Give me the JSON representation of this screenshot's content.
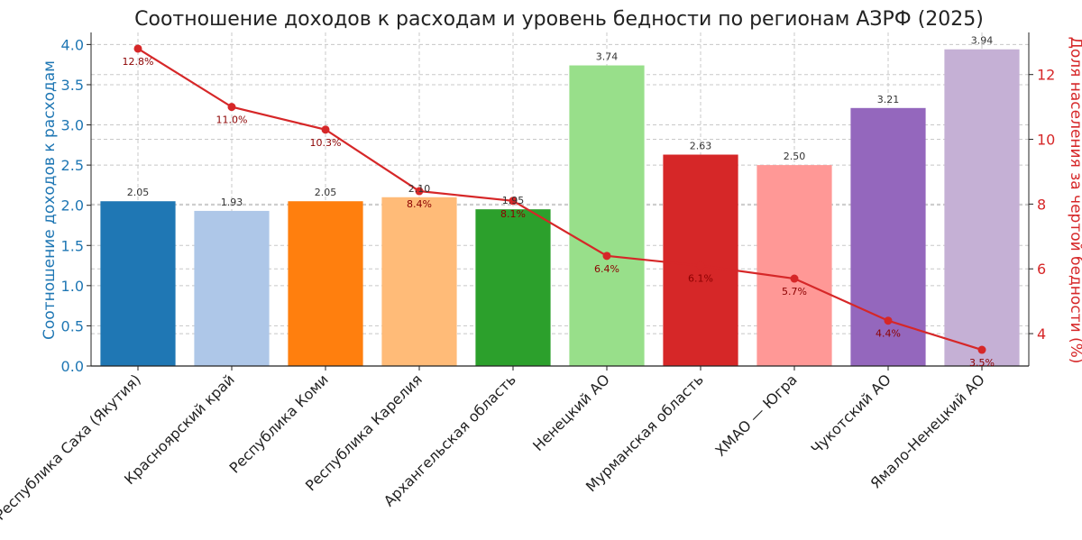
{
  "chart_data": {
    "type": "bar",
    "title": "Соотношение доходов к расходам и уровень бедности по регионам АЗРФ (2025)",
    "categories": [
      "Республика Саха (Якутия)",
      "Красноярский край",
      "Республика Коми",
      "Республика Карелия",
      "Архангельская область",
      "Ненецкий АО",
      "Мурманская область",
      "ХМАО — Югра",
      "Чукотский АО",
      "Ямало-Ненецкий АО"
    ],
    "ylabel": "Соотношение доходов к расходам",
    "y2label": "Доля населения за чертой бедности (%)",
    "ylim": [
      0,
      4.15
    ],
    "y2lim": [
      3.0,
      13.3
    ],
    "yticks": [
      "0.0",
      "0.5",
      "1.0",
      "1.5",
      "2.0",
      "2.5",
      "3.0",
      "3.5",
      "4.0"
    ],
    "y2ticks": [
      "4",
      "6",
      "8",
      "10",
      "12"
    ],
    "grid": true,
    "series": [
      {
        "type": "bar",
        "axis": "left",
        "values": [
          2.05,
          1.93,
          2.05,
          2.1,
          1.95,
          3.74,
          2.63,
          2.5,
          3.21,
          3.94
        ],
        "labels": [
          "2.05",
          "1.93",
          "2.05",
          "2.10",
          "1.95",
          "3.74",
          "2.63",
          "2.50",
          "3.21",
          "3.94"
        ],
        "colors": [
          "#1f77b4",
          "#aec7e8",
          "#ff7f0e",
          "#ffbb78",
          "#2ca02c",
          "#98df8a",
          "#d62728",
          "#ff9896",
          "#9467bd",
          "#c5b0d5"
        ]
      },
      {
        "type": "line",
        "axis": "right",
        "values": [
          12.8,
          11.0,
          10.3,
          8.4,
          8.1,
          6.4,
          6.1,
          5.7,
          4.4,
          3.5
        ],
        "labels": [
          "12.8%",
          "11.0%",
          "10.3%",
          "8.4%",
          "8.1%",
          "6.4%",
          "6.1%",
          "5.7%",
          "4.4%",
          "3.5%"
        ],
        "color": "#d62728"
      }
    ],
    "colors": {
      "left_axis": "#1f77b4",
      "right_axis": "#d62728"
    }
  }
}
